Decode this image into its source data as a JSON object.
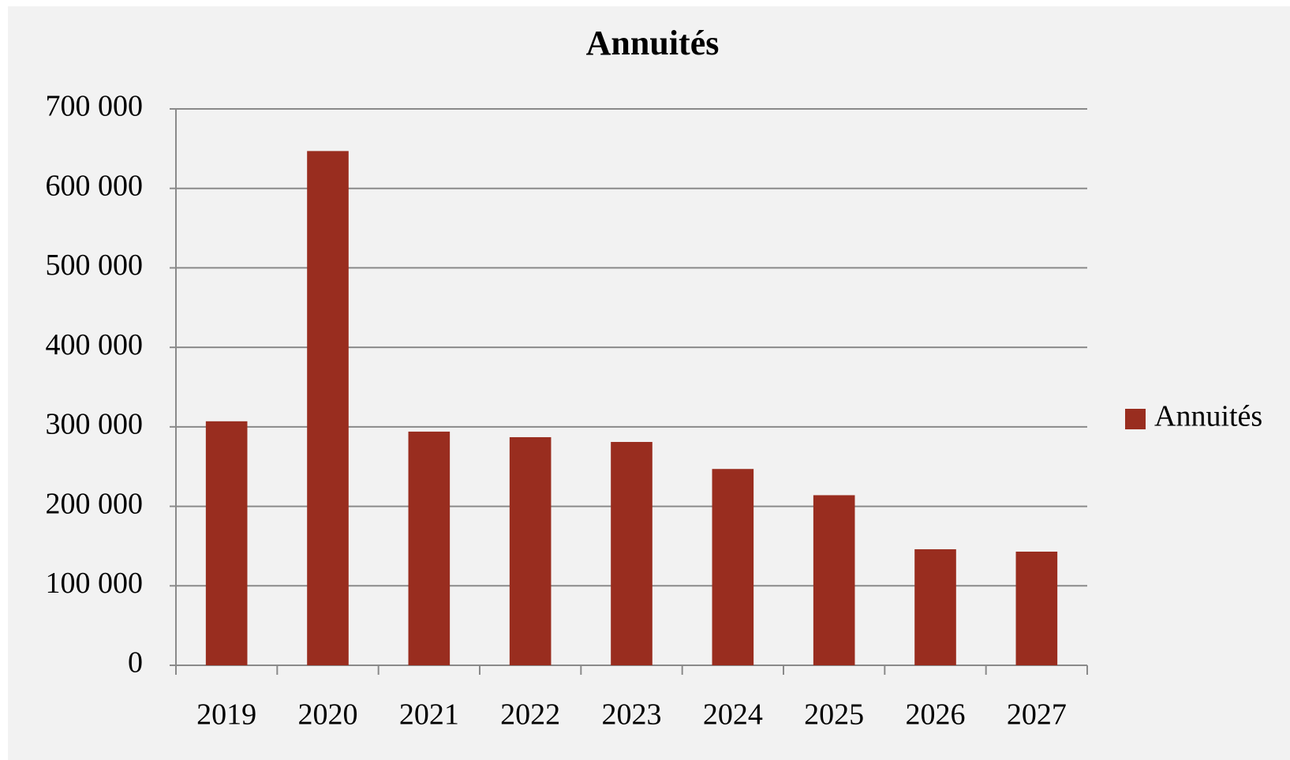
{
  "chart_data": {
    "type": "bar",
    "title": "Annuités",
    "categories": [
      "2019",
      "2020",
      "2021",
      "2022",
      "2023",
      "2024",
      "2025",
      "2026",
      "2027"
    ],
    "series": [
      {
        "name": "Annuités",
        "color": "#992d1f",
        "values": [
          307000,
          647000,
          294000,
          287000,
          281000,
          247000,
          214000,
          146000,
          143000
        ]
      }
    ],
    "ylim": [
      0,
      700000
    ],
    "yticks": [
      0,
      {
        "value": 100000,
        "label": "100 000"
      },
      {
        "value": 200000,
        "label": "200 000"
      },
      {
        "value": 300000,
        "label": "300 000"
      },
      {
        "value": 400000,
        "label": "400 000"
      },
      {
        "value": 500000,
        "label": "500 000"
      },
      {
        "value": 600000,
        "label": "600 000"
      },
      {
        "value": 700000,
        "label": "700 000"
      }
    ],
    "grid": true,
    "legend": "right"
  }
}
